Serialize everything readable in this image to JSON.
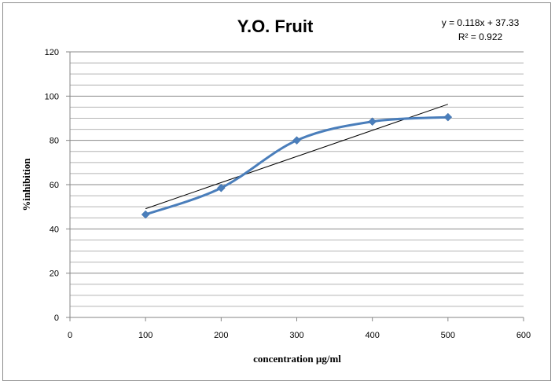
{
  "chart_data": {
    "type": "scatter",
    "title": "Y.O. Fruit",
    "xlabel": "concentration µg/ml",
    "ylabel": "%inhibition",
    "xlim": [
      0,
      600
    ],
    "ylim": [
      0,
      120
    ],
    "x_ticks": [
      0,
      100,
      200,
      300,
      400,
      500,
      600
    ],
    "y_ticks": [
      0,
      20,
      40,
      60,
      80,
      100,
      120
    ],
    "grid": true,
    "series": [
      {
        "style": "smoothed-line-with-markers",
        "color": "#4a7ebb",
        "marker": "diamond",
        "x": [
          100,
          200,
          300,
          400,
          500
        ],
        "y": [
          46.5,
          58.5,
          80,
          88.5,
          90.5
        ]
      }
    ],
    "trendline": {
      "type": "linear",
      "color": "#000000",
      "slope": 0.118,
      "intercept": 37.33,
      "x_range": [
        100,
        500
      ]
    },
    "annotations": {
      "equation": "y = 0.118x + 37.33",
      "r_squared": "R² = 0.922"
    }
  }
}
